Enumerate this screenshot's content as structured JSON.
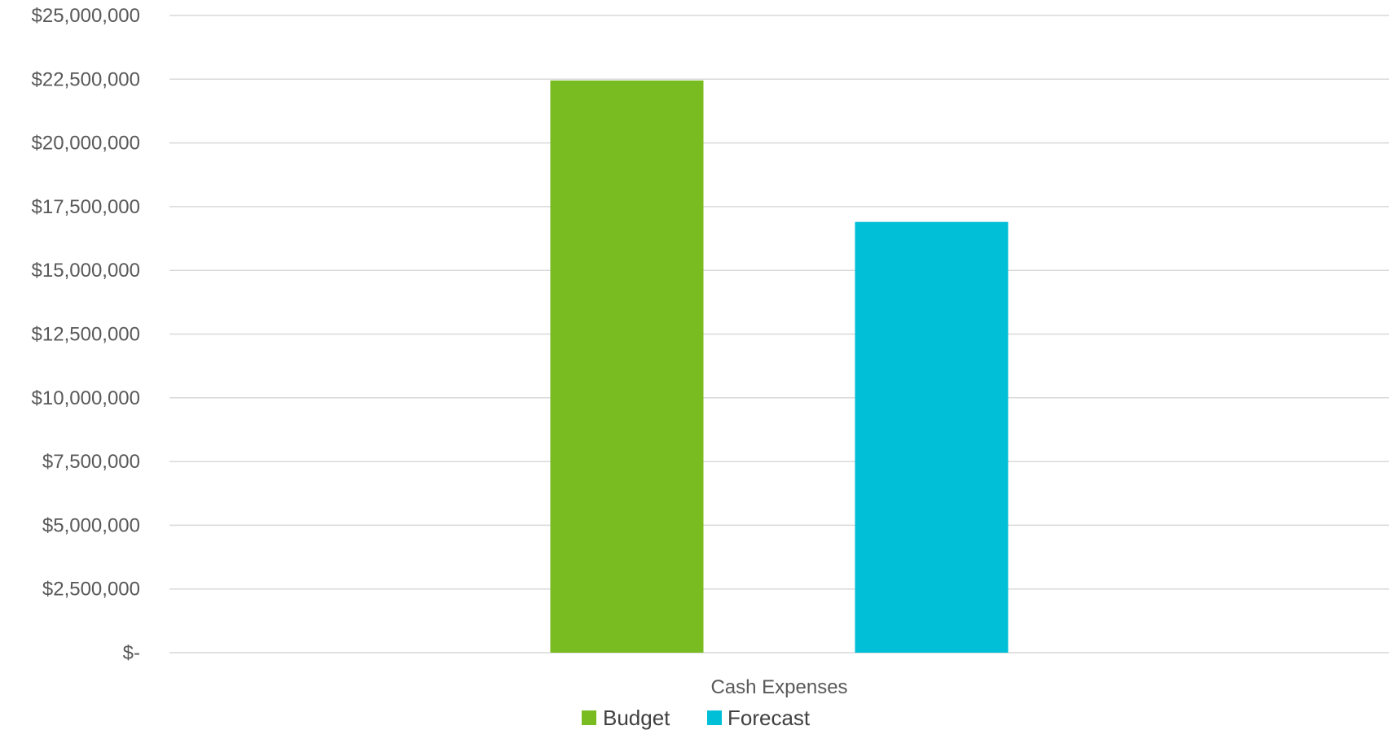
{
  "chart_data": {
    "type": "bar",
    "title": "",
    "xlabel": "",
    "ylabel": "",
    "categories": [
      "Cash Expenses"
    ],
    "series": [
      {
        "name": "Budget",
        "values": [
          22450000
        ],
        "color": "#78bc21"
      },
      {
        "name": "Forecast",
        "values": [
          16900000
        ],
        "color": "#00bfd6"
      }
    ],
    "ylim": [
      0,
      25000000
    ],
    "y_ticks": [
      0,
      2500000,
      5000000,
      7500000,
      10000000,
      12500000,
      15000000,
      17500000,
      20000000,
      22500000,
      25000000
    ],
    "y_tick_labels": [
      "$-",
      "$2,500,000",
      "$5,000,000",
      "$7,500,000",
      "$10,000,000",
      "$12,500,000",
      "$15,000,000",
      "$17,500,000",
      "$20,000,000",
      "$22,500,000",
      "$25,000,000"
    ],
    "grid": true,
    "legend_position": "bottom"
  }
}
